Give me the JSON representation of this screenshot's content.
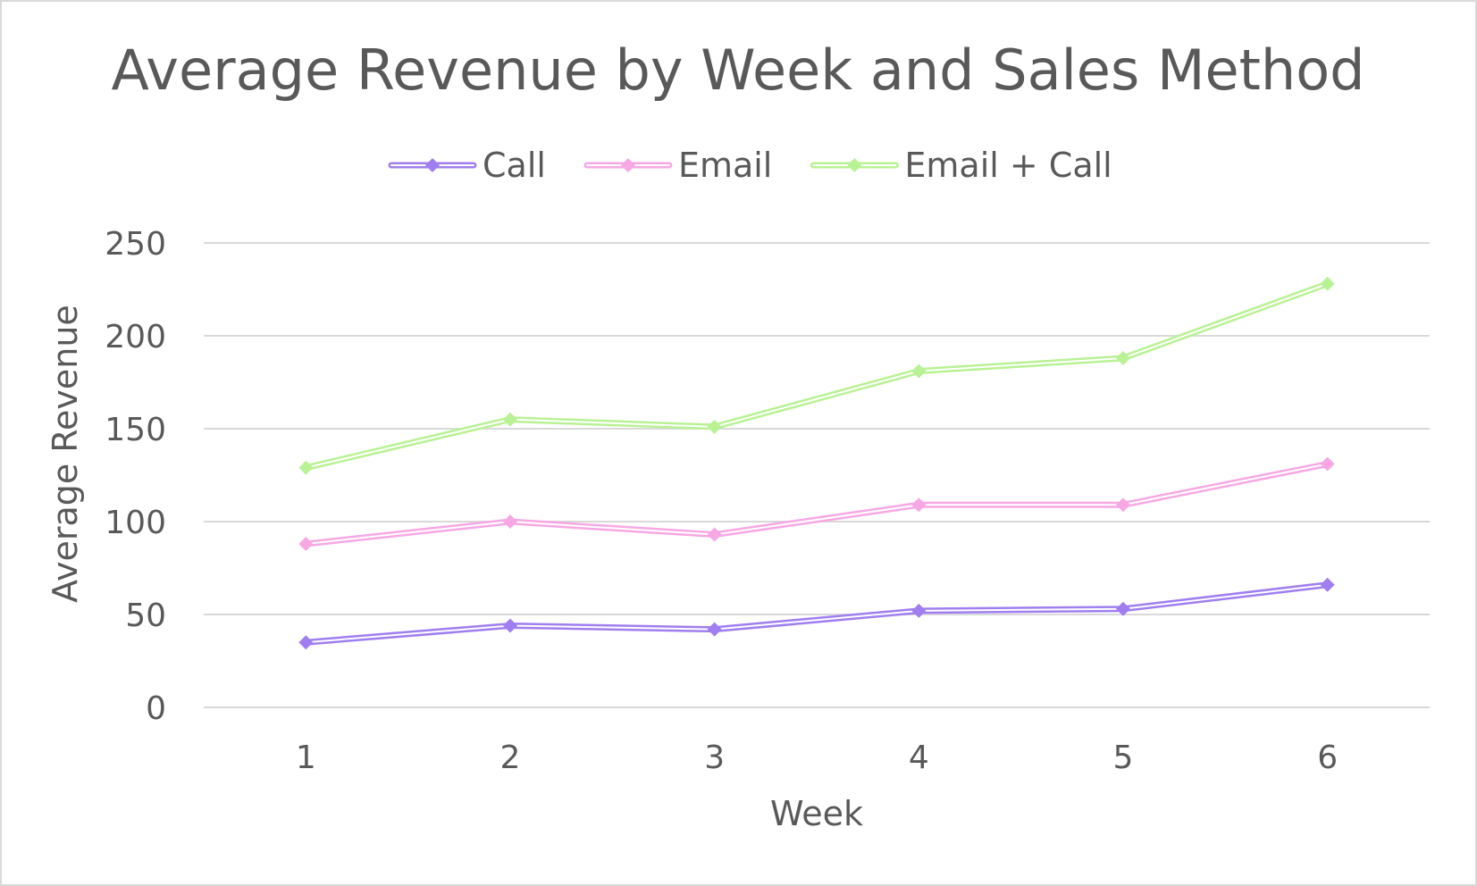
{
  "chart_data": {
    "type": "line",
    "title": "Average Revenue by Week and Sales Method",
    "xlabel": "Week",
    "ylabel": "Average Revenue",
    "categories": [
      "1",
      "2",
      "3",
      "4",
      "5",
      "6"
    ],
    "ylim": [
      0,
      250
    ],
    "yticks": [
      "0",
      "50",
      "100",
      "150",
      "200",
      "250"
    ],
    "grid": true,
    "legend_position": "top",
    "series": [
      {
        "name": "Call",
        "color": "#a07ef0",
        "values": [
          35,
          44,
          42,
          52,
          53,
          66
        ]
      },
      {
        "name": "Email",
        "color": "#f7a8e4",
        "values": [
          88,
          100,
          93,
          109,
          109,
          131
        ]
      },
      {
        "name": "Email + Call",
        "color": "#b9f294",
        "values": [
          129,
          155,
          151,
          181,
          188,
          228
        ]
      }
    ]
  }
}
